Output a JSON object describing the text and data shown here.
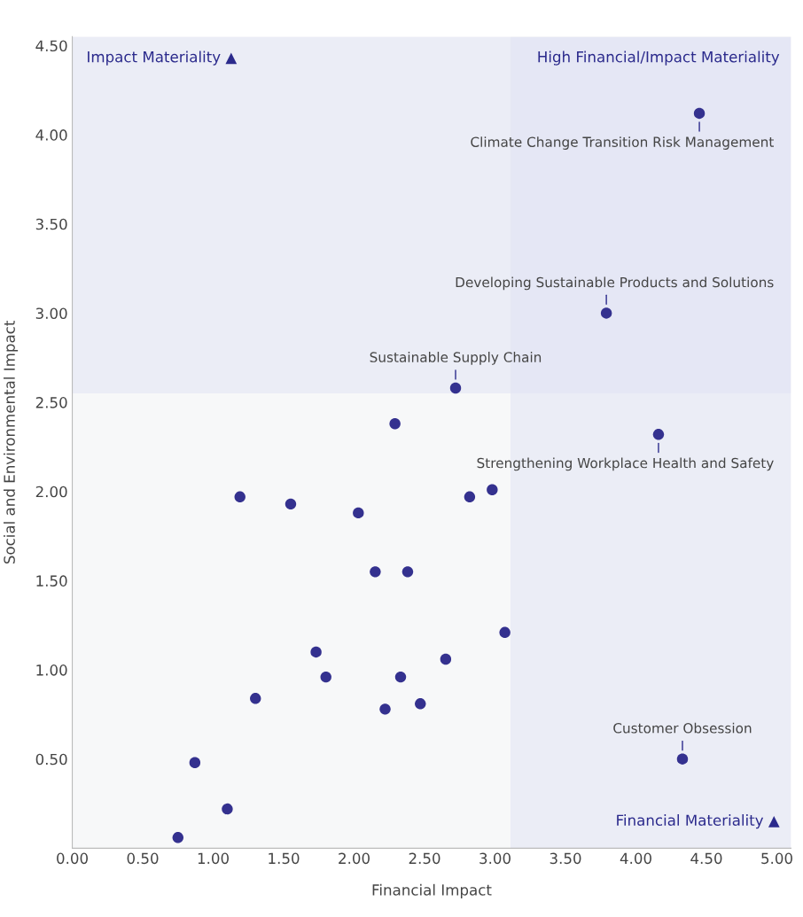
{
  "chart_data": {
    "type": "scatter",
    "xlabel": "Financial Impact",
    "ylabel": "Social and Environmental Impact",
    "xlim": [
      0,
      5.1
    ],
    "ylim": [
      0,
      4.55
    ],
    "xticks": [
      {
        "value": 0,
        "label": "0.00"
      },
      {
        "value": 0.5,
        "label": "0.50"
      },
      {
        "value": 1,
        "label": "1.00"
      },
      {
        "value": 1.5,
        "label": "1.50"
      },
      {
        "value": 2,
        "label": "2.00"
      },
      {
        "value": 2.5,
        "label": "2.50"
      },
      {
        "value": 3,
        "label": "3.00"
      },
      {
        "value": 3.5,
        "label": "3.50"
      },
      {
        "value": 4,
        "label": "4.00"
      },
      {
        "value": 4.5,
        "label": "4.50"
      },
      {
        "value": 5,
        "label": "5.00"
      }
    ],
    "yticks": [
      {
        "value": 0.5,
        "label": "0.50"
      },
      {
        "value": 1,
        "label": "1.00"
      },
      {
        "value": 1.5,
        "label": "1.50"
      },
      {
        "value": 2,
        "label": "2.00"
      },
      {
        "value": 2.5,
        "label": "2.50"
      },
      {
        "value": 3,
        "label": "3.00"
      },
      {
        "value": 3.5,
        "label": "3.50"
      },
      {
        "value": 4,
        "label": "4.00"
      },
      {
        "value": 4.5,
        "label": "4.50"
      }
    ],
    "grid": false,
    "marker": "circle",
    "series": [
      {
        "color": "#34318f",
        "x": [
          0.75,
          0.87,
          1.1,
          1.19,
          1.3,
          1.55,
          1.73,
          1.8,
          2.03,
          2.15,
          2.22,
          2.29,
          2.33,
          2.38,
          2.47,
          2.65,
          2.72,
          2.82,
          2.98,
          3.07,
          3.79,
          4.16,
          4.33,
          4.45
        ],
        "values": [
          0.06,
          0.48,
          0.22,
          1.97,
          0.84,
          1.93,
          1.1,
          0.96,
          1.88,
          1.55,
          0.78,
          2.38,
          0.96,
          1.55,
          0.81,
          1.06,
          2.58,
          1.97,
          2.01,
          1.21,
          3.0,
          2.32,
          0.5,
          4.12
        ]
      }
    ],
    "bands": [
      {
        "axis": "y",
        "from": 2.55,
        "to": 4.55,
        "label": "Impact Materiality ▲",
        "color": "#dfe2f3"
      },
      {
        "axis": "x",
        "from": 3.11,
        "to": 5.1,
        "label": "Financial Materiality ▲",
        "color": "#dfe2f3"
      }
    ],
    "annotations": [
      {
        "text": "Climate Change Transition Risk Management",
        "x": 4.45,
        "y": 4.12
      },
      {
        "text": "Developing Sustainable Products and Solutions",
        "x": 3.79,
        "y": 3.0
      },
      {
        "text": "Sustainable Supply Chain",
        "x": 2.72,
        "y": 2.58
      },
      {
        "text": "Strengthening Workplace Health and Safety",
        "x": 4.16,
        "y": 2.32
      },
      {
        "text": "Customer Obsession",
        "x": 4.33,
        "y": 0.5
      },
      "High Financial/Impact Materiality"
    ]
  }
}
